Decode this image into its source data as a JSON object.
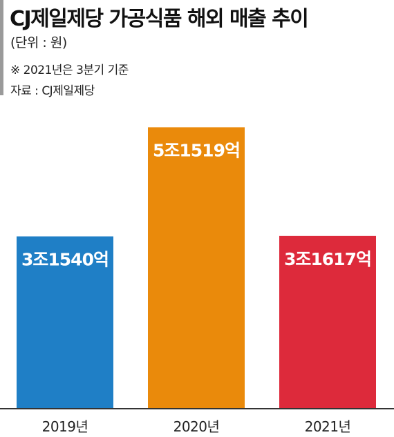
{
  "header": {
    "title": "CJ제일제당 가공식품 해외 매출 추이",
    "unit": "(단위 : 원)",
    "note": "※ 2021년은 3분기 기준",
    "source": "자료 : CJ제일제당"
  },
  "chart_data": {
    "type": "bar",
    "categories": [
      "2019년",
      "2020년",
      "2021년"
    ],
    "values": [
      31540,
      51519,
      31617
    ],
    "value_labels": [
      "3조1540억",
      "5조1519억",
      "3조1617억"
    ],
    "colors": [
      "#1f7fc6",
      "#ea8a0b",
      "#dd2a3b"
    ],
    "baseline_color": "#333333",
    "grid": false,
    "legend": "none",
    "ylim": [
      0,
      57000
    ]
  }
}
